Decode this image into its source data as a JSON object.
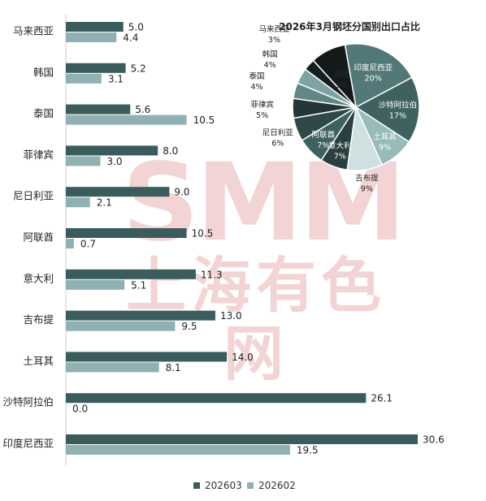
{
  "chart_data": [
    {
      "type": "bar",
      "orientation": "horizontal",
      "categories": [
        "马来西亚",
        "韩国",
        "泰国",
        "菲律宾",
        "尼日利亚",
        "阿联酋",
        "意大利",
        "吉布提",
        "土耳其",
        "沙特阿拉伯",
        "印度尼西亚"
      ],
      "series": [
        {
          "name": "202603",
          "color": "#3b5c5c",
          "values": [
            5.0,
            5.2,
            5.6,
            8.0,
            9.0,
            10.5,
            11.3,
            13.0,
            14.0,
            26.1,
            30.6
          ]
        },
        {
          "name": "202602",
          "color": "#8fb1b3",
          "values": [
            4.4,
            3.1,
            10.5,
            3.0,
            2.1,
            0.7,
            5.1,
            9.5,
            8.1,
            0.0,
            19.5
          ]
        }
      ],
      "legend": "bottom-center",
      "xlim": [
        0,
        35
      ],
      "grid": false
    },
    {
      "type": "pie",
      "title": "2026年3月钢坯分国别出口占比",
      "slices": [
        {
          "label": "印度尼西亚",
          "pct": "20%",
          "value": 20,
          "color": "#537878"
        },
        {
          "label": "沙特阿拉伯",
          "pct": "17%",
          "value": 17,
          "color": "#3f6261"
        },
        {
          "label": "土耳其",
          "pct": "9%",
          "value": 9,
          "color": "#98babb"
        },
        {
          "label": "吉布提",
          "pct": "9%",
          "value": 9,
          "color": "#cfe0e0"
        },
        {
          "label": "意大利",
          "pct": "7%",
          "value": 7,
          "color": "#2a3f3f"
        },
        {
          "label": "阿联酋",
          "pct": "7%",
          "value": 7,
          "color": "#3e6161"
        },
        {
          "label": "尼日利亚",
          "pct": "6%",
          "value": 6,
          "color": "#2f4848"
        },
        {
          "label": "菲律宾",
          "pct": "5%",
          "value": 5,
          "color": "#233535"
        },
        {
          "label": "泰国",
          "pct": "4%",
          "value": 4,
          "color": "#608686"
        },
        {
          "label": "韩国",
          "pct": "4%",
          "value": 4,
          "color": "#7ea3a3"
        },
        {
          "label": "马来西亚",
          "pct": "3%",
          "value": 3,
          "color": "#161f1f"
        },
        {
          "label": "其他",
          "pct": "9%",
          "value": 9,
          "color": "#141a1a"
        }
      ]
    }
  ],
  "watermark": {
    "brand": "SMM",
    "cn": "上海有色网",
    "color": "#e8b2b2"
  }
}
